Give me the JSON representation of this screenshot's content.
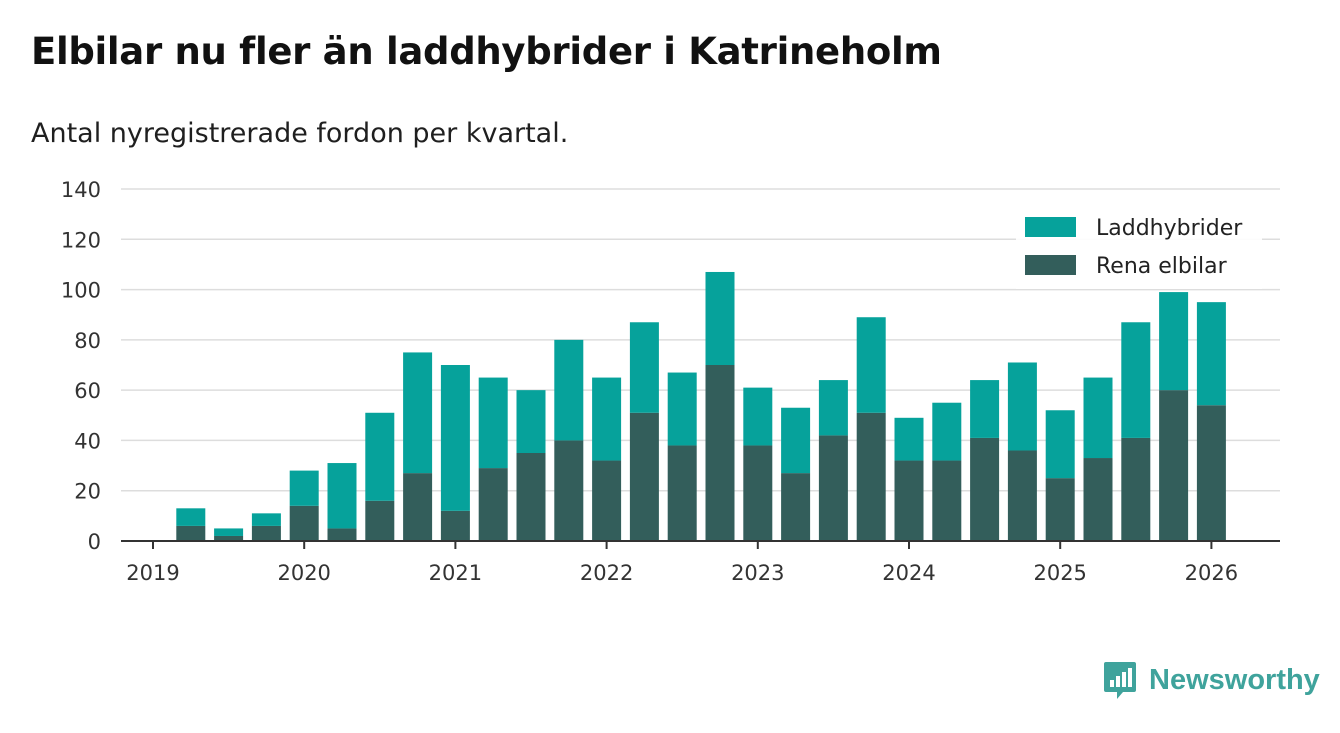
{
  "title": "Elbilar nu fler än laddhybrider i Katrineholm",
  "subtitle": "Antal nyregistrerade fordon per kvartal.",
  "brand": "Newsworthy",
  "colors": {
    "laddhybrider": "#06a29b",
    "elbilar": "#335e5b",
    "grid": "#dddddd",
    "axis": "#333333",
    "brand": "#3fa39c"
  },
  "chart_data": {
    "type": "bar",
    "stacked": true,
    "x_tick_labels": [
      "2019",
      "2020",
      "2021",
      "2022",
      "2023",
      "2024",
      "2025",
      "2026"
    ],
    "y_ticks": [
      0,
      20,
      40,
      60,
      80,
      100,
      120,
      140
    ],
    "ylim": [
      0,
      140
    ],
    "grid": true,
    "legend_position": "top-right",
    "categories": [
      "2019-Q1",
      "2019-Q2",
      "2019-Q3",
      "2019-Q4",
      "2020-Q1",
      "2020-Q2",
      "2020-Q3",
      "2020-Q4",
      "2021-Q1",
      "2021-Q2",
      "2021-Q3",
      "2021-Q4",
      "2022-Q1",
      "2022-Q2",
      "2022-Q3",
      "2022-Q4",
      "2023-Q1",
      "2023-Q2",
      "2023-Q3",
      "2023-Q4",
      "2024-Q1",
      "2024-Q2",
      "2024-Q3",
      "2024-Q4",
      "2025-Q1",
      "2025-Q2",
      "2025-Q3",
      "2025-Q4",
      "2026-Q1"
    ],
    "series": [
      {
        "name": "Rena elbilar",
        "values": [
          0,
          6,
          2,
          6,
          14,
          5,
          16,
          27,
          12,
          29,
          35,
          40,
          32,
          51,
          38,
          70,
          38,
          27,
          42,
          51,
          32,
          32,
          41,
          36,
          25,
          33,
          41,
          60,
          54
        ]
      },
      {
        "name": "Laddhybrider",
        "values": [
          0,
          7,
          3,
          5,
          14,
          26,
          35,
          48,
          58,
          36,
          25,
          40,
          33,
          36,
          29,
          37,
          23,
          26,
          22,
          38,
          17,
          23,
          23,
          35,
          27,
          32,
          46,
          39,
          41
        ]
      }
    ]
  }
}
